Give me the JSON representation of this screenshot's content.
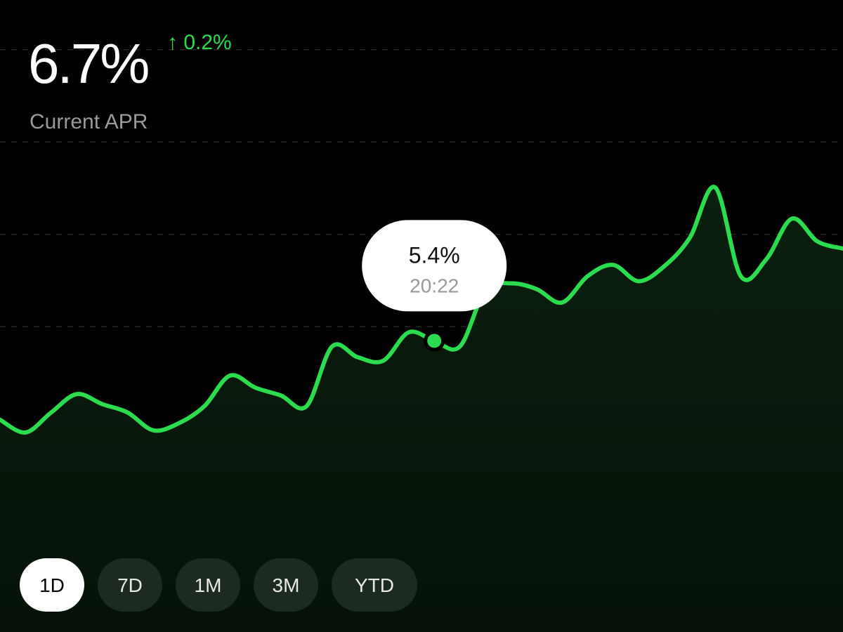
{
  "header": {
    "value": "6.7%",
    "change": "↑ 0.2%",
    "label": "Current APR"
  },
  "chart_data": {
    "type": "area",
    "categories": [
      null,
      null,
      null,
      null,
      null,
      null,
      null,
      null,
      null,
      null,
      null,
      null,
      null,
      null,
      null,
      null,
      null,
      "20:22",
      null,
      null,
      null,
      null,
      null,
      null,
      null,
      null,
      null,
      null,
      null,
      null,
      null,
      null,
      null,
      null
    ],
    "values": [
      4.29,
      4.11,
      4.39,
      4.65,
      4.51,
      4.39,
      4.14,
      4.24,
      4.48,
      4.91,
      4.74,
      4.63,
      4.48,
      5.32,
      5.17,
      5.12,
      5.52,
      5.4,
      5.32,
      6.11,
      6.21,
      6.13,
      5.94,
      6.31,
      6.47,
      6.24,
      6.45,
      6.85,
      7.56,
      6.31,
      6.55,
      7.12,
      6.8,
      6.7
    ],
    "value_labels": [
      null,
      null,
      null,
      null,
      null,
      null,
      null,
      null,
      null,
      null,
      null,
      null,
      null,
      null,
      null,
      null,
      null,
      "5.4%",
      null,
      null,
      null,
      null,
      null,
      null,
      null,
      null,
      null,
      null,
      null,
      null,
      null,
      null,
      null,
      null
    ],
    "color": "#2bdc4e",
    "ylim": [
      1.3,
      10.2
    ],
    "yticks": [
      5.6,
      6.9,
      8.2,
      9.5
    ],
    "grid": true
  },
  "range_buttons": {
    "options": [
      "1D",
      "7D",
      "1M",
      "3M",
      "YTD"
    ],
    "selected_index": 0
  }
}
